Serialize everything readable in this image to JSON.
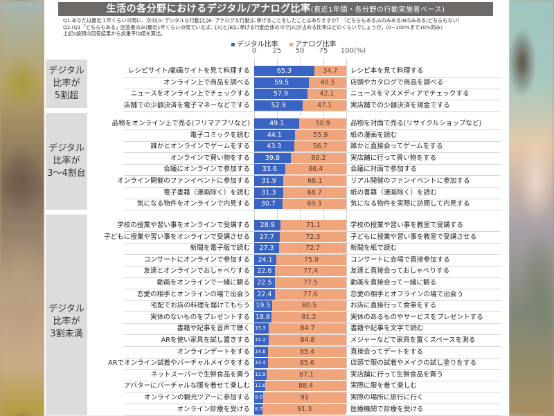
{
  "title": {
    "main": "生活の各分野におけるデジタル/アナログ比率",
    "sub": "(直近1年間・各分野の行動実施者ベース)"
  },
  "questions": {
    "q1": "Q1.あなたは最近１年くらいの間に、次の[A: デジタルな行動]と[B: アナログな行動]に挙げることをしたことはありますか？（どちらもある/Aのみある/Bのみある/どちらもない）",
    "q2": "Q2.(Q1「どちらもある」回答者のみ)最近1年くらいの間でいえば、[A]と[B]に挙げる行動全体の中で[A]が占める比率はどのくらいでしょうか。(0~100%まで10%刻み)",
    "q3": "上記2設問の回答結果から加重平均値を算出。"
  },
  "legend": {
    "digital": "デジタル比率",
    "analog": "アナログ比率"
  },
  "colors": {
    "digital": "#3a64c4",
    "analog": "#f1a57c",
    "title_bar": "#6e6a68",
    "group_box": "#dcdcdc"
  },
  "axis": {
    "ticks": [
      "0",
      "25",
      "50",
      "75",
      "100(%)"
    ]
  },
  "groups": [
    {
      "label": "デジタル\n比率が\n5割超",
      "line1": "デジタル",
      "line2": "比率が",
      "line3": "5割超"
    },
    {
      "label": "デジタル\n比率が\n3〜4割台",
      "line1": "デジタル",
      "line2": "比率が",
      "line3": "3〜4割台"
    },
    {
      "label": "デジタル\n比率が\n3割未満",
      "line1": "デジタル",
      "line2": "比率が",
      "line3": "3割未満"
    }
  ],
  "rows": [
    {
      "group": 0,
      "digital_label": "レシピサイト/動画サイトを見て料理する",
      "digital": "65.3",
      "analog": "34.7",
      "analog_label": "レシピ本を見て料理する"
    },
    {
      "group": 0,
      "digital_label": "オンライン上で商品を調べる",
      "digital": "59.5",
      "analog": "40.5",
      "analog_label": "店頭やカタログで商品を調べる"
    },
    {
      "group": 0,
      "digital_label": "ニュースをオンライン上でチェックする",
      "digital": "57.9",
      "analog": "42.1",
      "analog_label": "ニュースをマスメディアでチェックする"
    },
    {
      "group": 0,
      "digital_label": "店舗での少額決済を電子マネーなどでする",
      "digital": "52.9",
      "analog": "47.1",
      "analog_label": "実店舗での少額決済を現金でする"
    },
    {
      "group": 1,
      "digital_label": "品物をオンライン上で売る(フリマアプリなど)",
      "digital": "49.1",
      "analog": "50.9",
      "analog_label": "品物を対面で売る(リサイクルショップなど)"
    },
    {
      "group": 1,
      "digital_label": "電子コミックを読む",
      "digital": "44.1",
      "analog": "55.9",
      "analog_label": "紙の漫画を読む"
    },
    {
      "group": 1,
      "digital_label": "誰かとオンラインでゲームをする",
      "digital": "43.3",
      "analog": "56.7",
      "analog_label": "誰かと直接会ってゲームをする"
    },
    {
      "group": 1,
      "digital_label": "オンラインで買い物をする",
      "digital": "39.8",
      "analog": "60.2",
      "analog_label": "実店舗に行って買い物をする"
    },
    {
      "group": 1,
      "digital_label": "会議にオンラインで参加する",
      "digital": "33.6",
      "analog": "66.4",
      "analog_label": "会議に対面で参加する"
    },
    {
      "group": 1,
      "digital_label": "オンライン開催のファンイベントに参加する",
      "digital": "31.9",
      "analog": "68.1",
      "analog_label": "リアル開催のファンイベントに参加する"
    },
    {
      "group": 1,
      "digital_label": "電子書籍（漫画除く）を読む",
      "digital": "31.3",
      "analog": "68.7",
      "analog_label": "紙の書籍（漫画除く）を読む"
    },
    {
      "group": 1,
      "digital_label": "気になる物件をオンラインで内見する",
      "digital": "30.7",
      "analog": "69.3",
      "analog_label": "気になる物件を実際に訪問して内見する"
    },
    {
      "group": 2,
      "digital_label": "学校の授業や習い事をオンラインで受講する",
      "digital": "28.9",
      "analog": "71.1",
      "analog_label": "学校の授業や習い事を教室で受講する"
    },
    {
      "group": 2,
      "digital_label": "子どもに授業や習い事をオンラインで受講させる",
      "digital": "27.7",
      "analog": "72.3",
      "analog_label": "子どもに授業や習い事を教室で受講させる"
    },
    {
      "group": 2,
      "digital_label": "新聞を電子版で読む",
      "digital": "27.3",
      "analog": "72.7",
      "analog_label": "新聞を紙で読む"
    },
    {
      "group": 2,
      "digital_label": "コンサートにオンラインで参加する",
      "digital": "24.1",
      "analog": "75.9",
      "analog_label": "コンサートに会場で直接参加する"
    },
    {
      "group": 2,
      "digital_label": "友達とオンラインでおしゃべりする",
      "digital": "22.6",
      "analog": "77.4",
      "analog_label": "友達と直接会っておしゃべりする"
    },
    {
      "group": 2,
      "digital_label": "動画をオンラインで一緒に観る",
      "digital": "22.5",
      "analog": "77.5",
      "analog_label": "動画を直接会って一緒に観る"
    },
    {
      "group": 2,
      "digital_label": "恋愛の相手とオンラインの場で出会う",
      "digital": "22.4",
      "analog": "77.6",
      "analog_label": "恋愛の相手とオフラインの場で出会う"
    },
    {
      "group": 2,
      "digital_label": "宅配でお店の料理を届けてもらう",
      "digital": "19.5",
      "analog": "80.5",
      "analog_label": "お店に直接行って食事をする"
    },
    {
      "group": 2,
      "digital_label": "実体のないものをプレゼントする",
      "digital": "18.8",
      "analog": "81.2",
      "analog_label": "実体のあるものやサービスをプレゼントする"
    },
    {
      "group": 2,
      "digital_label": "書籍や記事を音声で聴く",
      "digital": "15.3",
      "analog": "84.7",
      "analog_label": "書籍や記事を文字で読む"
    },
    {
      "group": 2,
      "digital_label": "ARを使い家具を試し置きする",
      "digital": "15.2",
      "analog": "84.8",
      "analog_label": "メジャーなどで家具を置くスペースを測る"
    },
    {
      "group": 2,
      "digital_label": "オンラインデートをする",
      "digital": "14.6",
      "analog": "85.4",
      "analog_label": "直接会ってデートをする"
    },
    {
      "group": 2,
      "digital_label": "ARでオンライン試着やバーチャルメイクをする",
      "digital": "14.4",
      "analog": "85.6",
      "analog_label": "店頭で服の試着やメイクの試し塗りをする"
    },
    {
      "group": 2,
      "digital_label": "ネットスーパーで生鮮食品を買う",
      "digital": "12.9",
      "analog": "87.1",
      "analog_label": "実店舗に行って生鮮食品を買う"
    },
    {
      "group": 2,
      "digital_label": "アバターにバーチャルな服を着せて楽しむ",
      "digital": "11.6",
      "analog": "88.4",
      "analog_label": "実際に服を着て楽しむ"
    },
    {
      "group": 2,
      "digital_label": "オンラインの観光ツアーに参加する",
      "digital": "9.0",
      "analog": "91",
      "analog_label": "実際の場所に旅行に行く"
    },
    {
      "group": 2,
      "digital_label": "オンライン診療を受ける",
      "digital": "8.7",
      "analog": "91.3",
      "analog_label": "医療機関で診療を受ける"
    }
  ],
  "chart_data": {
    "type": "bar",
    "stacked": true,
    "orientation": "horizontal",
    "title": "生活の各分野におけるデジタル/アナログ比率(直近1年間・各分野の行動実施者ベース)",
    "xlabel": "(%)",
    "xlim": [
      0,
      100
    ],
    "xticks": [
      0,
      25,
      50,
      75,
      100
    ],
    "grid": true,
    "legend_position": "top",
    "categories": [
      "レシピサイト/動画サイトを見て料理する",
      "オンライン上で商品を調べる",
      "ニュースをオンライン上でチェックする",
      "店舗での少額決済を電子マネーなどでする",
      "品物をオンライン上で売る(フリマアプリなど)",
      "電子コミックを読む",
      "誰かとオンラインでゲームをする",
      "オンラインで買い物をする",
      "会議にオンラインで参加する",
      "オンライン開催のファンイベントに参加する",
      "電子書籍（漫画除く）を読む",
      "気になる物件をオンラインで内見する",
      "学校の授業や習い事をオンラインで受講する",
      "子どもに授業や習い事をオンラインで受講させる",
      "新聞を電子版で読む",
      "コンサートにオンラインで参加する",
      "友達とオンラインでおしゃべりする",
      "動画をオンラインで一緒に観る",
      "恋愛の相手とオンラインの場で出会う",
      "宅配でお店の料理を届けてもらう",
      "実体のないものをプレゼントする",
      "書籍や記事を音声で聴く",
      "ARを使い家具を試し置きする",
      "オンラインデートをする",
      "ARでオンライン試着やバーチャルメイクをする",
      "ネットスーパーで生鮮食品を買う",
      "アバターにバーチャルな服を着せて楽しむ",
      "オンラインの観光ツアーに参加する",
      "オンライン診療を受ける"
    ],
    "series": [
      {
        "name": "デジタル比率",
        "color": "#3a64c4",
        "values": [
          65.3,
          59.5,
          57.9,
          52.9,
          49.1,
          44.1,
          43.3,
          39.8,
          33.6,
          31.9,
          31.3,
          30.7,
          28.9,
          27.7,
          27.3,
          24.1,
          22.6,
          22.5,
          22.4,
          19.5,
          18.8,
          15.3,
          15.2,
          14.6,
          14.4,
          12.9,
          11.6,
          9.0,
          8.7
        ]
      },
      {
        "name": "アナログ比率",
        "color": "#f1a57c",
        "values": [
          34.7,
          40.5,
          42.1,
          47.1,
          50.9,
          55.9,
          56.7,
          60.2,
          66.4,
          68.1,
          68.7,
          69.3,
          71.1,
          72.3,
          72.7,
          75.9,
          77.4,
          77.5,
          77.6,
          80.5,
          81.2,
          84.7,
          84.8,
          85.4,
          85.6,
          87.1,
          88.4,
          91,
          91.3
        ]
      }
    ],
    "analog_labels": [
      "レシピ本を見て料理する",
      "店頭やカタログで商品を調べる",
      "ニュースをマスメディアでチェックする",
      "実店舗での少額決済を現金でする",
      "品物を対面で売る(リサイクルショップなど)",
      "紙の漫画を読む",
      "誰かと直接会ってゲームをする",
      "実店舗に行って買い物をする",
      "会議に対面で参加する",
      "リアル開催のファンイベントに参加する",
      "紙の書籍（漫画除く）を読む",
      "気になる物件を実際に訪問して内見する",
      "学校の授業や習い事を教室で受講する",
      "子どもに授業や習い事を教室で受講させる",
      "新聞を紙で読む",
      "コンサートに会場で直接参加する",
      "友達と直接会っておしゃべりする",
      "動画を直接会って一緒に観る",
      "恋愛の相手とオフラインの場で出会う",
      "お店に直接行って食事をする",
      "実体のあるものやサービスをプレゼントする",
      "書籍や記事を文字で読む",
      "メジャーなどで家具を置くスペースを測る",
      "直接会ってデートをする",
      "店頭で服の試着やメイクの試し塗りをする",
      "実店舗に行って生鮮食品を買う",
      "実際に服を着て楽しむ",
      "実際の場所に旅行に行く",
      "医療機関で診療を受ける"
    ],
    "groups": [
      {
        "label": "デジタル比率が5割超",
        "rows": [
          0,
          3
        ]
      },
      {
        "label": "デジタル比率が3〜4割台",
        "rows": [
          4,
          11
        ]
      },
      {
        "label": "デジタル比率が3割未満",
        "rows": [
          12,
          28
        ]
      }
    ]
  }
}
